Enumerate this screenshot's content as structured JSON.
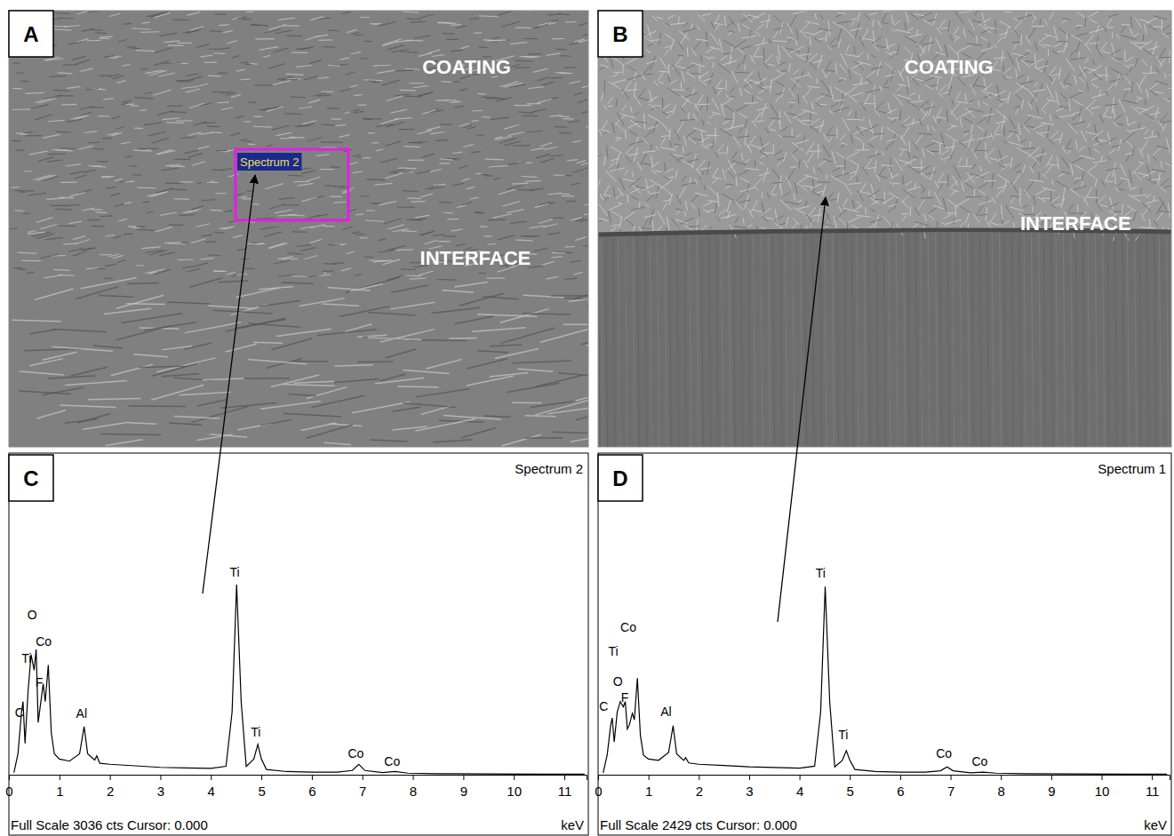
{
  "panels": [
    {
      "letter": "A",
      "labels": [
        "COATING",
        "INTERFACE"
      ],
      "box_label": "Spectrum 2"
    },
    {
      "letter": "B",
      "labels": [
        "COATING",
        "INTERFACE"
      ]
    },
    {
      "letter": "C"
    },
    {
      "letter": "D"
    }
  ],
  "chart_data": [
    {
      "type": "line",
      "title": "Spectrum 2",
      "x_label": "keV",
      "footer": "Full Scale 3036 cts Cursor: 0.000",
      "x": [
        0.1,
        0.18,
        0.25,
        0.28,
        0.32,
        0.38,
        0.44,
        0.5,
        0.54,
        0.58,
        0.62,
        0.68,
        0.72,
        0.78,
        0.84,
        0.9,
        1.0,
        1.2,
        1.4,
        1.49,
        1.56,
        1.7,
        1.74,
        1.8,
        2.0,
        2.5,
        3.0,
        3.5,
        4.0,
        4.3,
        4.42,
        4.51,
        4.6,
        4.7,
        4.85,
        4.93,
        5.0,
        5.1,
        5.5,
        6.0,
        6.5,
        6.8,
        6.93,
        7.05,
        7.4,
        7.65,
        7.9,
        8.5,
        9.5,
        10.5,
        11.4
      ],
      "values": [
        20,
        200,
        600,
        700,
        300,
        800,
        1150,
        1000,
        1200,
        500,
        650,
        870,
        700,
        1050,
        400,
        200,
        150,
        130,
        200,
        460,
        200,
        140,
        180,
        110,
        100,
        85,
        70,
        65,
        60,
        80,
        600,
        1820,
        700,
        80,
        150,
        290,
        150,
        50,
        30,
        25,
        25,
        40,
        100,
        40,
        20,
        30,
        15,
        10,
        8,
        5,
        5
      ],
      "xlim": [
        0,
        11.44
      ],
      "ylim": [
        0,
        3036
      ],
      "xticks": [
        0,
        1,
        2,
        3,
        4,
        5,
        6,
        7,
        8,
        9,
        10,
        11
      ],
      "tick_labels": "x",
      "color": "#000000",
      "annotations": [
        {
          "text": "C",
          "x": 0.21,
          "y": 550
        },
        {
          "text": "Ti",
          "x": 0.35,
          "y": 1070
        },
        {
          "text": "O",
          "x": 0.46,
          "y": 1490
        },
        {
          "text": "Co",
          "x": 0.69,
          "y": 1230
        },
        {
          "text": "F",
          "x": 0.6,
          "y": 840
        },
        {
          "text": "Al",
          "x": 1.44,
          "y": 545
        },
        {
          "text": "Ti",
          "x": 4.47,
          "y": 1900
        },
        {
          "text": "Ti",
          "x": 4.89,
          "y": 365
        },
        {
          "text": "Co",
          "x": 6.87,
          "y": 160
        },
        {
          "text": "Co",
          "x": 7.59,
          "y": 85
        }
      ]
    },
    {
      "type": "line",
      "title": "Spectrum 1",
      "x_label": "keV",
      "footer": "Full Scale 2429 cts Cursor: 0.000",
      "x": [
        0.1,
        0.18,
        0.25,
        0.28,
        0.32,
        0.38,
        0.44,
        0.5,
        0.54,
        0.58,
        0.62,
        0.68,
        0.72,
        0.78,
        0.84,
        0.9,
        1.0,
        1.2,
        1.4,
        1.49,
        1.56,
        1.7,
        1.74,
        1.8,
        2.0,
        2.5,
        3.0,
        3.5,
        4.0,
        4.3,
        4.42,
        4.51,
        4.6,
        4.7,
        4.85,
        4.93,
        5.0,
        5.1,
        5.5,
        6.0,
        6.5,
        6.8,
        6.93,
        7.05,
        7.4,
        7.65,
        7.9,
        8.5,
        9.5,
        10.5,
        11.3
      ],
      "values": [
        15,
        150,
        380,
        435,
        250,
        480,
        560,
        520,
        560,
        350,
        380,
        470,
        420,
        740,
        300,
        150,
        120,
        110,
        170,
        375,
        160,
        110,
        130,
        90,
        80,
        70,
        60,
        55,
        50,
        65,
        480,
        1440,
        560,
        60,
        110,
        185,
        110,
        40,
        25,
        20,
        20,
        30,
        60,
        30,
        15,
        20,
        12,
        8,
        6,
        4,
        4
      ],
      "xlim": [
        0,
        11.35
      ],
      "ylim": [
        0,
        2429
      ],
      "xticks": [
        0,
        1,
        2,
        3,
        4,
        5,
        6,
        7,
        8,
        9,
        10,
        11
      ],
      "tick_labels": "x",
      "color": "#000000",
      "annotations": [
        {
          "text": "C",
          "x": 0.11,
          "y": 490
        },
        {
          "text": "Ti",
          "x": 0.3,
          "y": 910
        },
        {
          "text": "O",
          "x": 0.39,
          "y": 680
        },
        {
          "text": "Co",
          "x": 0.6,
          "y": 1095
        },
        {
          "text": "F",
          "x": 0.53,
          "y": 560
        },
        {
          "text": "Al",
          "x": 1.35,
          "y": 450
        },
        {
          "text": "Ti",
          "x": 4.42,
          "y": 1510
        },
        {
          "text": "Ti",
          "x": 4.87,
          "y": 270
        },
        {
          "text": "Co",
          "x": 6.87,
          "y": 130
        },
        {
          "text": "Co",
          "x": 7.58,
          "y": 70
        }
      ]
    }
  ]
}
